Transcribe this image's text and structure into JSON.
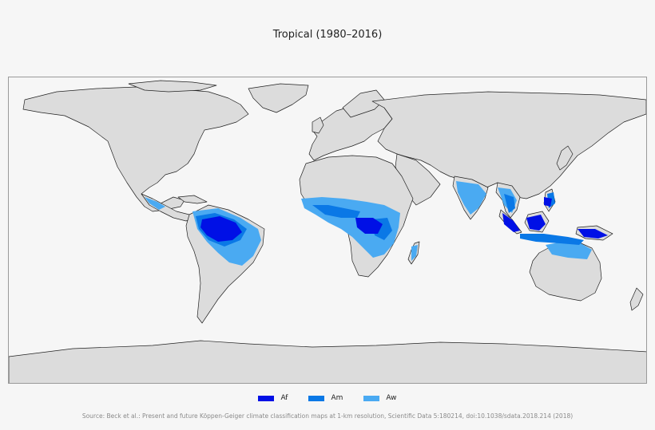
{
  "title": "Tropical (1980–2016)",
  "legend": [
    {
      "label": "Af",
      "color": "#0010e6"
    },
    {
      "label": "Am",
      "color": "#0a78e6"
    },
    {
      "label": "Aw",
      "color": "#4aaaf2"
    }
  ],
  "colors": {
    "land": "#dcdcdc",
    "border": "#202020",
    "ocean": "#f6f6f6"
  },
  "source": "Source: Beck et al.: Present and future Köppen-Geiger climate classification maps at 1-km resolution, Scientific Data 5:180214, doi:10.1038/sdata.2018.214 (2018)"
}
